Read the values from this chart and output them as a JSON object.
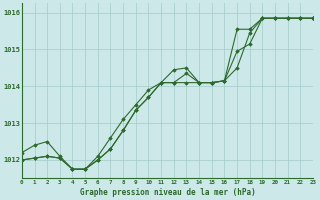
{
  "title": "Graphe pression niveau de la mer (hPa)",
  "bg_color": "#cce8e8",
  "grid_color": "#aacece",
  "line_color": "#2d6a2d",
  "xlim": [
    0,
    23
  ],
  "ylim": [
    1011.5,
    1016.25
  ],
  "yticks": [
    1012,
    1013,
    1014,
    1015,
    1016
  ],
  "xticks": [
    0,
    1,
    2,
    3,
    4,
    5,
    6,
    7,
    8,
    9,
    10,
    11,
    12,
    13,
    14,
    15,
    16,
    17,
    18,
    19,
    20,
    21,
    22,
    23
  ],
  "series1": [
    1012.2,
    1012.4,
    1012.5,
    1012.1,
    1011.75,
    1011.75,
    1012.1,
    1012.6,
    1013.1,
    1013.5,
    1013.9,
    1014.1,
    1014.45,
    1014.5,
    1014.1,
    1014.1,
    1014.15,
    1015.55,
    1015.55,
    1015.85,
    1015.85,
    1015.85,
    1015.85,
    1015.85
  ],
  "series2": [
    1012.0,
    1012.05,
    1012.1,
    1012.05,
    1011.75,
    1011.75,
    1012.0,
    1012.3,
    1012.8,
    1013.35,
    1013.7,
    1014.1,
    1014.1,
    1014.35,
    1014.1,
    1014.1,
    1014.15,
    1014.95,
    1015.15,
    1015.85,
    1015.85,
    1015.85,
    1015.85,
    1015.85
  ],
  "series3": [
    1012.0,
    1012.05,
    1012.1,
    1012.05,
    1011.75,
    1011.75,
    1012.0,
    1012.3,
    1012.8,
    1013.35,
    1013.7,
    1014.1,
    1014.1,
    1014.1,
    1014.1,
    1014.1,
    1014.15,
    1014.5,
    1015.45,
    1015.85,
    1015.85,
    1015.85,
    1015.85,
    1015.85
  ]
}
